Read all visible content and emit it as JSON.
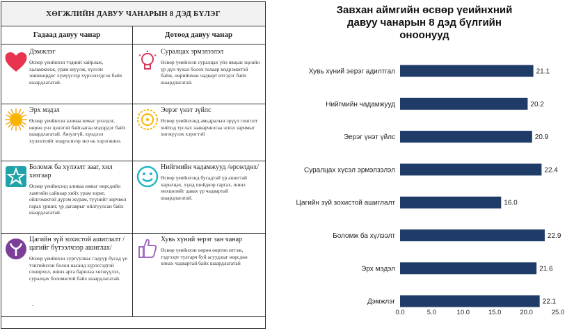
{
  "infographic": {
    "title": "ХӨГЖЛИЙН ДАВУУ ЧАНАРЫН 8 ДЭД БҮЛЭГ",
    "col_left": "Гадаад давуу чанар",
    "col_right": "Дотоод давуу чанар",
    "cells": [
      {
        "title": "Дэмжлэг",
        "icon": "heart-icon",
        "color": "#e8344e",
        "desc": "Өсвөр үеийнхэн тэдний хайрлаж, халамжилж, урам шүүлж, хүлээн зөвшөөрдөг хүмүүсээр хүрээлэгдсэн байх шаардлагатай."
      },
      {
        "title": "Суралцах эрмэлзэлэл",
        "icon": "lightbulb-icon",
        "color": "#d9365a",
        "desc": "Өсвөр үеийнхэн суралцах үйл явцын эцсийн үр дүн чухал болох талаар мэдрэмжтэй байж, өөрийнхөө чадварт итгэдэг байх шаардлагатай."
      },
      {
        "title": "Эрх мэдэл",
        "icon": "sun-icon",
        "color": "#f5a623",
        "desc": "Өсвөр үеийнхэн аливаа юмыг үнэлдэг, өөрөө үнэ цэнэтэй байгаагаа мэдэрдэг байх шаардлагатай. Аюулгүй, хүндлэл хүлээлтийг мэдрэснээр энэ нь хэрэгжинэ."
      },
      {
        "title": "Эерэг үнэт зүйлс",
        "icon": "sun-face-icon",
        "color": "#f7b500",
        "desc": "Өсвөр үеийнхэнд амьдралын эрүүл сонголт хийхэд туслах зааварчилгаа эсвэл зарчмыг хөгжүүлэх хэрэгтэй"
      },
      {
        "title": "Боломж ба хүлээлт зааг, хил хязгаар",
        "icon": "star-icon",
        "color": "#1fa3a8",
        "desc": "Өсвөр үеийнхэнд аливаа юмыг өөрсдийн хамгийн сайнаар хийх урам зориг, ойлгомжтой дүрэм журам, түүнийг зөрчвөл гарах үршиг, үр дагаврыг ойлгуулсан байх шаардлагатай."
      },
      {
        "title": "Нийгмийн чадамжууд /өрсөлдөх/",
        "icon": "smiley-icon",
        "color": "#22b6c6",
        "desc": "Өсвөр үеийнхэнд бусадтай үр ашигтай харилцах, хүнд шийдвэр гаргах, шинэ нөхцөлийг давах үр чадвартай шаардлагатай."
      },
      {
        "title": "Цагийн зүй зохистой ашиглалт /цагийг бүтээлчээр ашиглах/",
        "icon": "sprout-icon",
        "color": "#7b3f98",
        "desc": "Өсвөр үеийнхэн сургуулиас гадуур бусад үе тэнгийнхэн болон насанд хүрэгсэдтэй сонирхол, шинэ арга барилаа хөгжүүлэх, суралцах боломжтой байх шаардлагатай."
      },
      {
        "title": "Хувь хүний эерэг зан чанар",
        "icon": "thumbs-up-icon",
        "color": "#a46cc0",
        "desc": "Өсвөр үеийнхэн өөрөө өөртөө итгэж, тэдгээрт тулгарч буй асуудлыг өөрсдөө хянах чадвартай байх шаардлагатай"
      }
    ],
    "footnote": "."
  },
  "chart_data": {
    "type": "bar",
    "orientation": "horizontal",
    "title_lines": [
      "Завхан аймгийн өсвөр үеийнхний",
      "давуу  чанарын 8 дэд бүлгийн",
      "оноонууд"
    ],
    "categories": [
      "Хувь хүний эерэг адилтгал",
      "Нийгмийн  чадамжууд",
      "Эерэг үнэт үйлс",
      "Суралцах хүсэл эрмэлзэлэл",
      "Цагийн зүй зохистой  ашиглалт",
      "Боломж ба хүлээлт",
      "Эрх мэдэл",
      "Дэмжлэг"
    ],
    "values": [
      21.1,
      20.2,
      20.9,
      22.4,
      16.0,
      22.9,
      21.6,
      22.1
    ],
    "value_labels": [
      "21.1",
      "20.2",
      "20.9",
      "22.4",
      "16.0",
      "22.9",
      "21.6",
      "22.1"
    ],
    "xlim": [
      0,
      25
    ],
    "xticks": [
      "0.0",
      "5.0",
      "10.0",
      "15.0",
      "20.0",
      "25.0"
    ],
    "bar_color": "#1f3b68",
    "grid": false,
    "legend": "none"
  }
}
